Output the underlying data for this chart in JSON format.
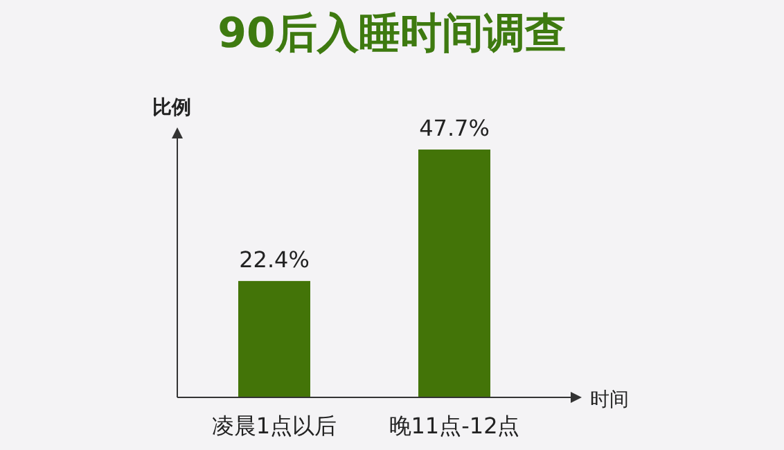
{
  "chart_data": {
    "type": "bar",
    "title": "90后入睡时间调查",
    "xlabel": "时间",
    "ylabel": "比例",
    "categories": [
      "凌晨1点以后",
      "晚11点-12点"
    ],
    "values": [
      22.4,
      47.7
    ],
    "value_labels": [
      "22.4%",
      "47.7%"
    ],
    "color": "#437408"
  }
}
